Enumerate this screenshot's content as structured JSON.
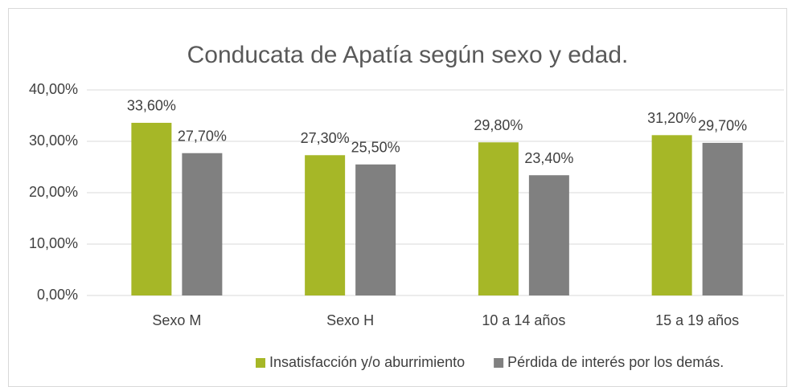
{
  "chart_data": {
    "type": "bar",
    "title": "Conducata de Apatía según sexo y edad.",
    "categories": [
      "Sexo M",
      "Sexo H",
      "10 a 14 años",
      "15 a 19 años"
    ],
    "series": [
      {
        "name": "Insatisfacción y/o aburrimiento",
        "color": "#a6b727",
        "values": [
          33.6,
          27.3,
          29.8,
          31.2
        ],
        "value_labels": [
          "33,60%",
          "27,30%",
          "29,80%",
          "31,20%"
        ]
      },
      {
        "name": "Pérdida de interés por los demás.",
        "color": "#808080",
        "values": [
          27.7,
          25.5,
          23.4,
          29.7
        ],
        "value_labels": [
          "27,70%",
          "25,50%",
          "23,40%",
          "29,70%"
        ]
      }
    ],
    "ylim": [
      0,
      40
    ],
    "yticks": [
      {
        "value": 0,
        "label": "0,00%"
      },
      {
        "value": 10,
        "label": "10,00%"
      },
      {
        "value": 20,
        "label": "20,00%"
      },
      {
        "value": 30,
        "label": "30,00%"
      },
      {
        "value": 40,
        "label": "40,00%"
      }
    ],
    "grid": true,
    "legend": "bottom"
  }
}
